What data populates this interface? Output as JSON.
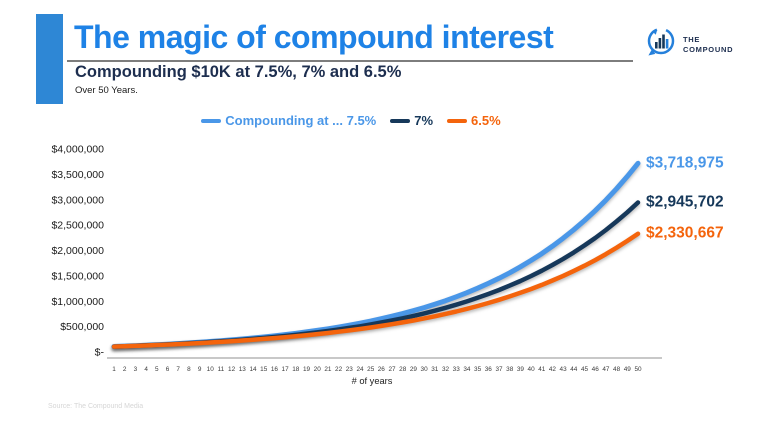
{
  "header": {
    "title": "The magic of compound interest",
    "subtitle": "Compounding $10K at 7.5%, 7% and 6.5%",
    "subtitle2": "Over 50 Years.",
    "title_color": "#1e82e6",
    "accent_bar_color": "#2e87d5"
  },
  "logo": {
    "line1": "THE",
    "line2": "COMPOUND",
    "icon_color": "#2580db",
    "text_color": "#1d2e4f"
  },
  "legend": {
    "items": [
      {
        "label": "Compounding at ... 7.5%",
        "color": "#4a97e8"
      },
      {
        "label": "7%",
        "color": "#16385a"
      },
      {
        "label": "6.5%",
        "color": "#f4640c"
      }
    ]
  },
  "source": "Source: The Compound Media",
  "chart_data": {
    "type": "line",
    "title": "Compounding $10K at 7.5%, 7% and 6.5%",
    "xlabel": "# of years",
    "ylabel": "",
    "grid": false,
    "legend_position": "top",
    "ylim": [
      0,
      4000000
    ],
    "y_tick_step": 500000,
    "y_tick_labels": [
      "$-",
      "$500,000",
      "$1,000,000",
      "$1,500,000",
      "$2,000,000",
      "$2,500,000",
      "$3,000,000",
      "$3,500,000",
      "$4,000,000"
    ],
    "x": [
      1,
      2,
      3,
      4,
      5,
      6,
      7,
      8,
      9,
      10,
      11,
      12,
      13,
      14,
      15,
      16,
      17,
      18,
      19,
      20,
      21,
      22,
      23,
      24,
      25,
      26,
      27,
      28,
      29,
      30,
      31,
      32,
      33,
      34,
      35,
      36,
      37,
      38,
      39,
      40,
      41,
      42,
      43,
      44,
      45,
      46,
      47,
      48,
      49,
      50
    ],
    "series": [
      {
        "name": "Compounding at ... 7.5%",
        "rate": "7.5%",
        "color": "#4a97e8",
        "final_label": "$3,718,975",
        "values": [
          107500,
          115563,
          124230,
          133547,
          143563,
          154330,
          165905,
          178348,
          191724,
          206103,
          221561,
          238178,
          256041,
          275244,
          295888,
          318079,
          341935,
          367580,
          395149,
          424785,
          456644,
          490892,
          527709,
          567287,
          609834,
          655572,
          704739,
          757595,
          814414,
          875496,
          941158,
          1011745,
          1087625,
          1169197,
          1256887,
          1351154,
          1452490,
          1561427,
          1678534,
          1804424,
          1939756,
          2085237,
          2241630,
          2409752,
          2590484,
          2784770,
          2993628,
          3218150,
          3459511,
          3718975
        ]
      },
      {
        "name": "7%",
        "rate": "7%",
        "color": "#16385a",
        "final_label": "$2,945,702",
        "values": [
          107000,
          114490,
          122504,
          131080,
          140255,
          150073,
          160578,
          171819,
          183846,
          196715,
          210485,
          225219,
          240985,
          257853,
          275903,
          295216,
          315882,
          337993,
          361653,
          386968,
          414056,
          443040,
          474053,
          507237,
          542743,
          580735,
          621387,
          664884,
          711426,
          761226,
          814511,
          871527,
          932534,
          997811,
          1067658,
          1142394,
          1222362,
          1307927,
          1399482,
          1497446,
          1602267,
          1714426,
          1834435,
          1962846,
          2100245,
          2247262,
          2404571,
          2572891,
          2752993,
          2945702
        ]
      },
      {
        "name": "6.5%",
        "rate": "6.5%",
        "color": "#f4640c",
        "final_label": "$2,330,667",
        "values": [
          106500,
          113423,
          120795,
          128647,
          137009,
          145914,
          155399,
          165500,
          176257,
          187714,
          199915,
          212910,
          226749,
          241487,
          257184,
          273901,
          291705,
          310665,
          330859,
          352365,
          375268,
          399661,
          425639,
          453305,
          482770,
          514150,
          547570,
          583162,
          621067,
          661437,
          704430,
          750218,
          798982,
          850916,
          906225,
          965130,
          1027864,
          1094675,
          1165829,
          1241607,
          1322312,
          1408262,
          1499799,
          1597286,
          1701110,
          1811682,
          1929441,
          2054855,
          2188421,
          2330667
        ]
      }
    ]
  }
}
